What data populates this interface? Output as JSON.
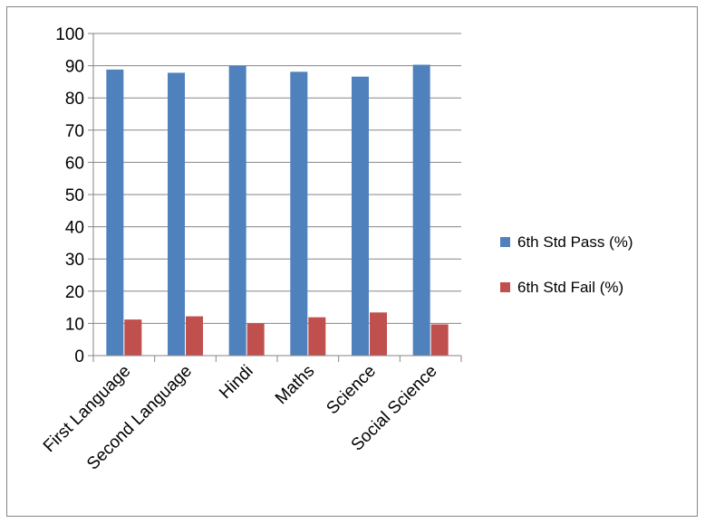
{
  "chart_data": {
    "type": "bar",
    "categories": [
      "First Language",
      "Second Language",
      "Hindi",
      "Maths",
      "Science",
      "Social Science"
    ],
    "series": [
      {
        "name": "6th Std Pass (%)",
        "color": "#4f81bd",
        "values": [
          88.8,
          87.8,
          90.0,
          88.1,
          86.6,
          90.3
        ]
      },
      {
        "name": "6th Std Fail (%)",
        "color": "#c0504d",
        "values": [
          11.2,
          12.2,
          10.0,
          11.9,
          13.4,
          9.7
        ]
      }
    ],
    "yticks": [
      "0",
      "10",
      "20",
      "30",
      "40",
      "50",
      "60",
      "70",
      "80",
      "90",
      "100"
    ],
    "ylim": [
      0,
      100
    ],
    "grid": true,
    "legend_position": "right",
    "title": "",
    "xlabel": "",
    "ylabel": ""
  }
}
